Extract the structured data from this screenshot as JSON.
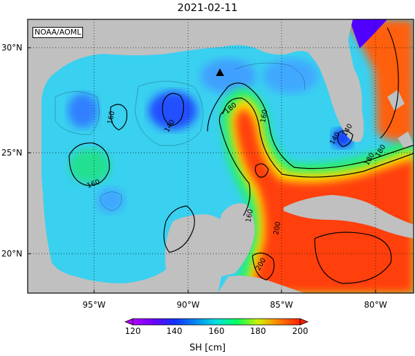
{
  "title": "2021-02-11",
  "credit": "NOAA/AOML",
  "lat_labels": [
    "30°N",
    "25°N",
    "20°N"
  ],
  "lon_labels": [
    "95°W",
    "90°W",
    "85°W",
    "80°W"
  ],
  "contour_labels": [
    "140",
    "160",
    "180",
    "160",
    "140",
    "160",
    "180",
    "180",
    "160",
    "200",
    "200",
    "140"
  ],
  "colorbar": {
    "label": "SH [cm]",
    "ticks": [
      "120",
      "140",
      "160",
      "180",
      "200"
    ],
    "colors": [
      "#b000ff",
      "#2040ff",
      "#00d0ff",
      "#00ff70",
      "#f0f000",
      "#ff3000"
    ]
  },
  "colors": {
    "land": "#c0c0c0",
    "frame": "#000000"
  },
  "map_extent": {
    "lon": [
      -98,
      -79
    ],
    "lat": [
      18,
      31
    ]
  }
}
